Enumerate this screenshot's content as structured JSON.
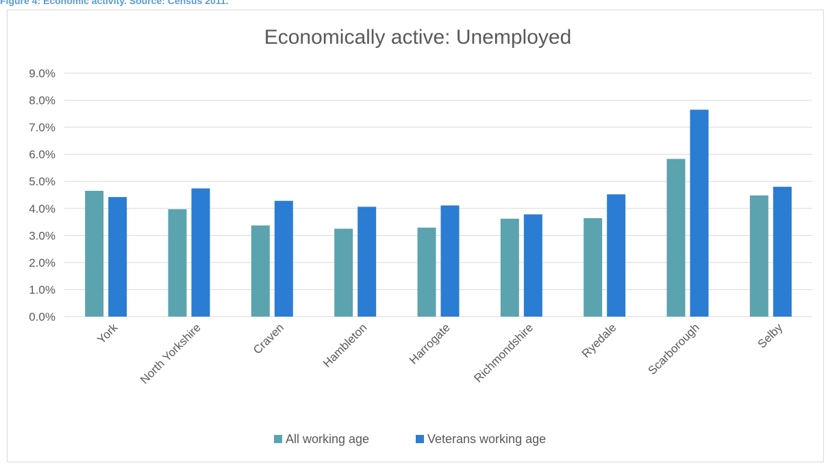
{
  "caption": "Figure 4: Economic activity. Source: Census 2011.",
  "colors": {
    "all": "#5ba3af",
    "veterans": "#2b7cd3",
    "grid": "#d9d9d9",
    "text": "#595959"
  },
  "chart_data": {
    "type": "bar",
    "title": "Economically active: Unemployed",
    "xlabel": "",
    "ylabel": "",
    "ylim": [
      0,
      9
    ],
    "y_tick_labels": [
      "0.0%",
      "1.0%",
      "2.0%",
      "3.0%",
      "4.0%",
      "5.0%",
      "6.0%",
      "7.0%",
      "8.0%",
      "9.0%"
    ],
    "grid": true,
    "legend": "bottom",
    "categories": [
      "York",
      "North Yorkshire",
      "Craven",
      "Hambleton",
      "Harrogate",
      "Richmondshire",
      "Ryedale",
      "Scarborough",
      "Selby"
    ],
    "series": [
      {
        "name": "All working age",
        "values": [
          4.65,
          3.97,
          3.37,
          3.25,
          3.29,
          3.62,
          3.64,
          5.83,
          4.48
        ]
      },
      {
        "name": "Veterans working age",
        "values": [
          4.42,
          4.74,
          4.28,
          4.06,
          4.11,
          3.78,
          4.52,
          7.65,
          4.8
        ]
      }
    ]
  }
}
